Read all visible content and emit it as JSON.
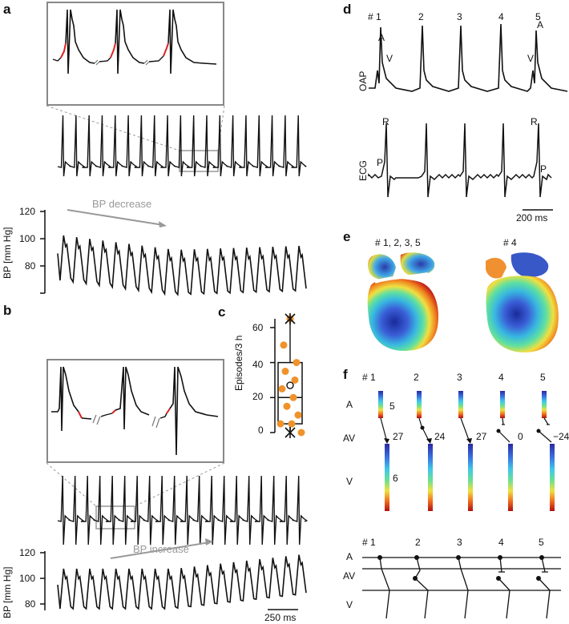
{
  "panels": {
    "a": {
      "label": "a",
      "bp_annotation": "BP decrease",
      "ylabel": "BP [mm Hg]",
      "yticks": [
        "120",
        "100",
        "80"
      ]
    },
    "b": {
      "label": "b",
      "bp_annotation": "BP increase",
      "ylabel": "BP [mm Hg]",
      "yticks": [
        "120",
        "100",
        "80"
      ],
      "scalebar": "250 ms"
    },
    "c": {
      "label": "c",
      "ylabel": "Episodes/3 h",
      "yticks": [
        "60",
        "40",
        "20",
        "0"
      ]
    },
    "d": {
      "label": "d",
      "beats": [
        "# 1",
        "2",
        "3",
        "4",
        "5"
      ],
      "oap_label": "OAP",
      "ecg_label": "ECG",
      "wave_labels": {
        "A1": "A",
        "V1": "V",
        "A5": "A",
        "V5": "V",
        "R1": "R",
        "P1": "P",
        "R5": "R",
        "P5": "P"
      },
      "scalebar": "200 ms"
    },
    "e": {
      "label": "e",
      "map_titles": [
        "# 1, 2, 3, 5",
        "# 4"
      ]
    },
    "f": {
      "label": "f",
      "beats": [
        "# 1",
        "2",
        "3",
        "4",
        "5"
      ],
      "rows": [
        "A",
        "AV",
        "V"
      ],
      "a_value": "5",
      "v_value": "6",
      "av_values": [
        "27",
        "24",
        "27",
        "0",
        "−24"
      ],
      "ladder_beats": [
        "# 1",
        "2",
        "3",
        "4",
        "5"
      ],
      "ladder_rows": [
        "A",
        "AV",
        "V"
      ]
    }
  },
  "chart_data": {
    "type": "box",
    "title": "",
    "ylabel": "Episodes/3 h",
    "ylim": [
      0,
      65
    ],
    "box": {
      "min": 0,
      "q1": 5,
      "median": 20,
      "q3": 40,
      "max": 65,
      "mean": 27
    },
    "points": [
      65,
      50,
      40,
      35,
      30,
      25,
      20,
      15,
      10,
      5,
      5,
      0
    ],
    "marker_color": "#f0922b"
  }
}
